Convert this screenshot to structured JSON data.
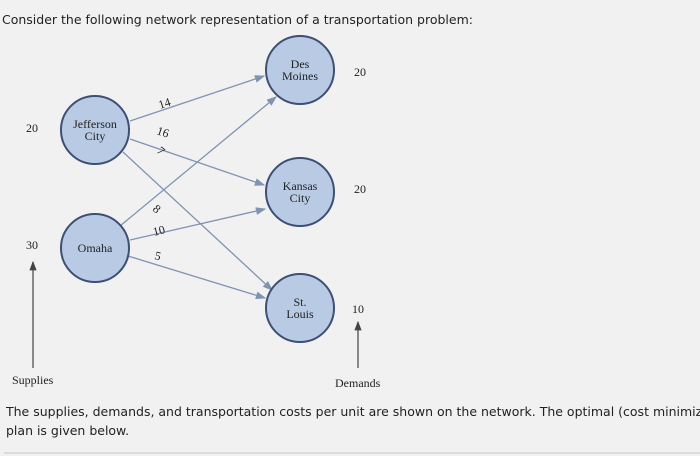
{
  "header": {
    "title": "Consider the following network representation of a transportation problem:"
  },
  "nodes": [
    {
      "label": [
        "Jefferson",
        "City"
      ],
      "amount": "20"
    },
    {
      "label": [
        "Omaha"
      ],
      "amount": "30"
    },
    {
      "label": [
        "Des",
        "Moines"
      ],
      "amount": "20"
    },
    {
      "label": [
        "Kansas",
        "City"
      ],
      "amount": "20"
    },
    {
      "label": [
        "St.",
        "Louis"
      ],
      "amount": "10"
    }
  ],
  "edges": [
    {
      "cost": "14"
    },
    {
      "cost": "16"
    },
    {
      "cost": "7"
    },
    {
      "cost": "8"
    },
    {
      "cost": "10"
    },
    {
      "cost": "5"
    }
  ],
  "footer": {
    "supplies": "Supplies",
    "demands": "Demands"
  },
  "body": {
    "lines": [
      "The supplies, demands, and transportation costs per unit are shown on the network. The optimal (cost minimizing",
      "plan is given below."
    ]
  }
}
